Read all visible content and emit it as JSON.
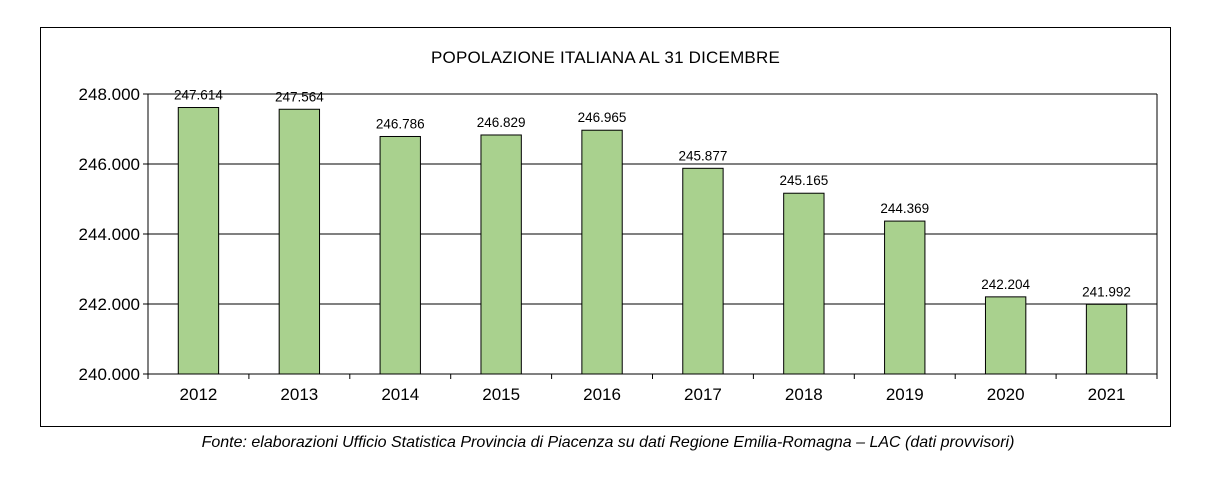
{
  "chart_data": {
    "type": "bar",
    "title": "POPOLAZIONE ITALIANA AL 31 DICEMBRE",
    "xlabel": "",
    "ylabel": "",
    "categories": [
      "2012",
      "2013",
      "2014",
      "2015",
      "2016",
      "2017",
      "2018",
      "2019",
      "2020",
      "2021"
    ],
    "values": [
      247614,
      247564,
      246786,
      246829,
      246965,
      245877,
      245165,
      244369,
      242204,
      241992
    ],
    "value_labels": [
      "247.614",
      "247.564",
      "246.786",
      "246.829",
      "246.965",
      "245.877",
      "245.165",
      "244.369",
      "242.204",
      "241.992"
    ],
    "ylim": [
      240000,
      248000
    ],
    "yticks": [
      240000,
      242000,
      244000,
      246000,
      248000
    ],
    "ytick_labels": [
      "240.000",
      "242.000",
      "244.000",
      "246.000",
      "248.000"
    ],
    "grid": true,
    "bar_color": "#a9d18e",
    "bar_edge_color": "#000000",
    "plot_background": "#ffffff"
  },
  "caption": "Fonte: elaborazioni Ufficio Statistica Provincia di Piacenza su dati Regione Emilia-Romagna – LAC (dati provvisori)"
}
